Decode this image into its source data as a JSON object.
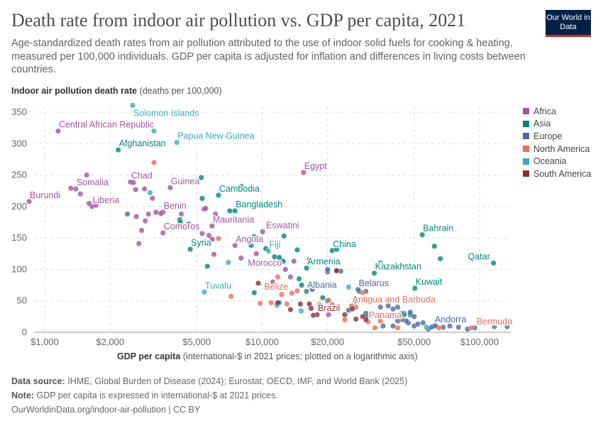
{
  "header": {
    "title": "Death rate from indoor air pollution vs. GDP per capita, 2021",
    "subtitle": "Age-standardized death rates from air pollution attributed to the use of indoor solid fuels for cooking & heating, measured per 100,000 individuals. GDP per capita is adjusted for inflation and differences in living costs between countries.",
    "logo": "Our World in Data"
  },
  "footer": {
    "source_label": "Data source:",
    "source": "IHME, Global Burden of Disease (2024); Eurostat, OECD, IMF, and World Bank (2025)",
    "note_label": "Note:",
    "note": "GDP per capita is expressed in international-$ at 2021 prices.",
    "url": "OurWorldinData.org/indoor-air-pollution | CC BY"
  },
  "chart_data": {
    "type": "scatter",
    "title": "Death rate from indoor air pollution vs. GDP per capita, 2021",
    "ylabel_bold": "Indoor air pollution death rate",
    "ylabel_rest": "(deaths per 100,000)",
    "xlabel_bold": "GDP per capita",
    "xlabel_rest": "(international-$ in 2021 prices; plotted on a logarithmic axis)",
    "x_scale": "log",
    "xlim": [
      900,
      140000
    ],
    "ylim": [
      0,
      350
    ],
    "x_ticks": [
      {
        "v": 1000,
        "l": "$1,000"
      },
      {
        "v": 2000,
        "l": "$2,000"
      },
      {
        "v": 5000,
        "l": "$5,000"
      },
      {
        "v": 10000,
        "l": "$10,000"
      },
      {
        "v": 20000,
        "l": "$20,000"
      },
      {
        "v": 50000,
        "l": "$50,000"
      },
      {
        "v": 100000,
        "l": "$100,000"
      }
    ],
    "y_ticks": [
      0,
      50,
      100,
      150,
      200,
      250,
      300,
      350
    ],
    "grid": true,
    "legend_position": "right",
    "series": [
      {
        "name": "Africa",
        "color": "#a2559c",
        "points": [
          {
            "x": 1153,
            "y": 320,
            "label": "Central African Republic"
          },
          {
            "x": 848,
            "y": 208,
            "label": "Burundi"
          },
          {
            "x": 1390,
            "y": 228,
            "label": "Somalia"
          },
          {
            "x": 1650,
            "y": 200,
            "label": "Liberia"
          },
          {
            "x": 2480,
            "y": 239,
            "label": "Chad"
          },
          {
            "x": 3780,
            "y": 230,
            "label": "Guinea"
          },
          {
            "x": 3500,
            "y": 191,
            "label": "Benin"
          },
          {
            "x": 5880,
            "y": 169,
            "label": "Mauritania"
          },
          {
            "x": 10050,
            "y": 160,
            "label": "Eswatini"
          },
          {
            "x": 3500,
            "y": 158,
            "label": "Comoros"
          },
          {
            "x": 7500,
            "y": 138,
            "label": "Angola"
          },
          {
            "x": 12800,
            "y": 100,
            "label": "Morocco",
            "anchor": "end"
          },
          {
            "x": 15500,
            "y": 254,
            "label": "Egypt"
          },
          {
            "x": 1320,
            "y": 229
          },
          {
            "x": 1460,
            "y": 220
          },
          {
            "x": 1560,
            "y": 250
          },
          {
            "x": 1600,
            "y": 205
          },
          {
            "x": 1720,
            "y": 202
          },
          {
            "x": 2560,
            "y": 238
          },
          {
            "x": 2620,
            "y": 227
          },
          {
            "x": 2880,
            "y": 228
          },
          {
            "x": 3130,
            "y": 213
          },
          {
            "x": 2640,
            "y": 184
          },
          {
            "x": 3000,
            "y": 188
          },
          {
            "x": 3250,
            "y": 191
          },
          {
            "x": 3420,
            "y": 189
          },
          {
            "x": 4250,
            "y": 188
          },
          {
            "x": 2900,
            "y": 177
          },
          {
            "x": 2790,
            "y": 162
          },
          {
            "x": 2710,
            "y": 141
          },
          {
            "x": 5400,
            "y": 196
          },
          {
            "x": 5500,
            "y": 197
          },
          {
            "x": 6100,
            "y": 188
          },
          {
            "x": 5300,
            "y": 157
          },
          {
            "x": 5700,
            "y": 154
          },
          {
            "x": 5900,
            "y": 148
          },
          {
            "x": 5400,
            "y": 144
          },
          {
            "x": 6000,
            "y": 124
          },
          {
            "x": 9400,
            "y": 125
          },
          {
            "x": 8000,
            "y": 118
          },
          {
            "x": 14000,
            "y": 113
          },
          {
            "x": 16500,
            "y": 116
          },
          {
            "x": 13500,
            "y": 88
          },
          {
            "x": 20200,
            "y": 28
          },
          {
            "x": 11200,
            "y": 80
          }
        ]
      },
      {
        "name": "Asia",
        "color": "#00847e",
        "points": [
          {
            "x": 2180,
            "y": 290,
            "label": "Afghanistan"
          },
          {
            "x": 6300,
            "y": 218,
            "label": "Cambodia"
          },
          {
            "x": 7500,
            "y": 193,
            "label": "Bangladesh"
          },
          {
            "x": 4670,
            "y": 132,
            "label": "Syria"
          },
          {
            "x": 21000,
            "y": 130,
            "label": "China"
          },
          {
            "x": 16000,
            "y": 102,
            "label": "Armenia"
          },
          {
            "x": 32800,
            "y": 94,
            "label": "Kazakhstan"
          },
          {
            "x": 54500,
            "y": 155,
            "label": "Bahrain"
          },
          {
            "x": 116000,
            "y": 110,
            "label": "Qatar",
            "anchor": "end"
          },
          {
            "x": 50400,
            "y": 70,
            "label": "Kuwait"
          },
          {
            "x": 5250,
            "y": 246
          },
          {
            "x": 5300,
            "y": 213
          },
          {
            "x": 8000,
            "y": 232
          },
          {
            "x": 7100,
            "y": 193
          },
          {
            "x": 4180,
            "y": 179
          },
          {
            "x": 4200,
            "y": 175
          },
          {
            "x": 5600,
            "y": 105
          },
          {
            "x": 9200,
            "y": 152
          },
          {
            "x": 12600,
            "y": 153
          },
          {
            "x": 8900,
            "y": 138
          },
          {
            "x": 10400,
            "y": 133
          },
          {
            "x": 11400,
            "y": 120
          },
          {
            "x": 12000,
            "y": 119
          },
          {
            "x": 12500,
            "y": 113
          },
          {
            "x": 14500,
            "y": 131
          },
          {
            "x": 22000,
            "y": 132
          },
          {
            "x": 9200,
            "y": 63
          },
          {
            "x": 14800,
            "y": 85
          },
          {
            "x": 20000,
            "y": 50
          },
          {
            "x": 19000,
            "y": 55
          },
          {
            "x": 12000,
            "y": 47
          },
          {
            "x": 15200,
            "y": 75
          },
          {
            "x": 35000,
            "y": 110
          },
          {
            "x": 62000,
            "y": 137
          },
          {
            "x": 66000,
            "y": 117
          },
          {
            "x": 28000,
            "y": 65
          },
          {
            "x": 30000,
            "y": 30
          },
          {
            "x": 45000,
            "y": 30
          },
          {
            "x": 48000,
            "y": 28
          },
          {
            "x": 27000,
            "y": 50
          }
        ]
      },
      {
        "name": "Europe",
        "color": "#4c6a9c",
        "points": [
          {
            "x": 16000,
            "y": 65,
            "label": "Albania"
          },
          {
            "x": 27600,
            "y": 68,
            "label": "Belarus"
          },
          {
            "x": 61800,
            "y": 10,
            "label": "Andorra"
          },
          {
            "x": 22000,
            "y": 98
          },
          {
            "x": 23000,
            "y": 97
          },
          {
            "x": 20000,
            "y": 96
          },
          {
            "x": 30000,
            "y": 65
          },
          {
            "x": 35000,
            "y": 40
          },
          {
            "x": 38000,
            "y": 42
          },
          {
            "x": 40000,
            "y": 37
          },
          {
            "x": 42000,
            "y": 40
          },
          {
            "x": 45000,
            "y": 28
          },
          {
            "x": 48000,
            "y": 32
          },
          {
            "x": 50000,
            "y": 10
          },
          {
            "x": 52000,
            "y": 13
          },
          {
            "x": 55000,
            "y": 15
          },
          {
            "x": 58000,
            "y": 5
          },
          {
            "x": 60000,
            "y": 8
          },
          {
            "x": 63000,
            "y": 10
          },
          {
            "x": 68000,
            "y": 8
          },
          {
            "x": 73000,
            "y": 10
          },
          {
            "x": 80000,
            "y": 8
          },
          {
            "x": 88000,
            "y": 5
          },
          {
            "x": 95000,
            "y": 7
          },
          {
            "x": 117000,
            "y": 9
          },
          {
            "x": 134000,
            "y": 9
          },
          {
            "x": 40000,
            "y": 10
          },
          {
            "x": 36000,
            "y": 10
          },
          {
            "x": 44000,
            "y": 20
          },
          {
            "x": 47000,
            "y": 15
          },
          {
            "x": 50000,
            "y": 25
          },
          {
            "x": 46000,
            "y": 18
          },
          {
            "x": 42000,
            "y": 18
          },
          {
            "x": 30000,
            "y": 25
          },
          {
            "x": 25000,
            "y": 35
          },
          {
            "x": 17000,
            "y": 68
          },
          {
            "x": 20000,
            "y": 100
          },
          {
            "x": 2400,
            "y": 188
          },
          {
            "x": 4600,
            "y": 172
          }
        ]
      },
      {
        "name": "North America",
        "color": "#e56e5a",
        "points": [
          {
            "x": 13700,
            "y": 62,
            "label": "Belize",
            "anchor": "end"
          },
          {
            "x": 25800,
            "y": 42,
            "label": "Antigua and Barbuda"
          },
          {
            "x": 30700,
            "y": 17,
            "label": "Panama"
          },
          {
            "x": 91800,
            "y": 7,
            "label": "Bermuda",
            "anchor": "end"
          },
          {
            "x": 3180,
            "y": 270
          },
          {
            "x": 6300,
            "y": 149
          },
          {
            "x": 7200,
            "y": 57
          },
          {
            "x": 9800,
            "y": 46
          },
          {
            "x": 11000,
            "y": 47
          },
          {
            "x": 12300,
            "y": 60
          },
          {
            "x": 13000,
            "y": 45
          },
          {
            "x": 14500,
            "y": 66
          },
          {
            "x": 18300,
            "y": 44
          },
          {
            "x": 20200,
            "y": 51
          },
          {
            "x": 21000,
            "y": 44
          },
          {
            "x": 24000,
            "y": 20
          },
          {
            "x": 27000,
            "y": 40
          },
          {
            "x": 29000,
            "y": 63
          },
          {
            "x": 33000,
            "y": 7
          },
          {
            "x": 35000,
            "y": 18
          },
          {
            "x": 42000,
            "y": 7
          },
          {
            "x": 65000,
            "y": 7
          },
          {
            "x": 11800,
            "y": 88
          }
        ]
      },
      {
        "name": "Oceania",
        "color": "#38aaba",
        "points": [
          {
            "x": 2540,
            "y": 361,
            "label": "Solomon Islands",
            "below": true
          },
          {
            "x": 4050,
            "y": 302,
            "label": "Papua New Guinea"
          },
          {
            "x": 10700,
            "y": 129,
            "label": "Fiji"
          },
          {
            "x": 5420,
            "y": 64,
            "label": "Tuvalu"
          },
          {
            "x": 3180,
            "y": 320
          },
          {
            "x": 3050,
            "y": 222
          },
          {
            "x": 4180,
            "y": 170
          },
          {
            "x": 7000,
            "y": 111
          },
          {
            "x": 11700,
            "y": 43
          },
          {
            "x": 15100,
            "y": 34
          },
          {
            "x": 25000,
            "y": 72
          },
          {
            "x": 57000,
            "y": 8
          },
          {
            "x": 44000,
            "y": 30
          }
        ]
      },
      {
        "name": "South America",
        "color": "#883039",
        "points": [
          {
            "x": 17900,
            "y": 28,
            "label": "Brazil"
          },
          {
            "x": 9600,
            "y": 78
          },
          {
            "x": 11800,
            "y": 47
          },
          {
            "x": 13500,
            "y": 36
          },
          {
            "x": 16500,
            "y": 45
          },
          {
            "x": 16800,
            "y": 38
          },
          {
            "x": 17200,
            "y": 27
          },
          {
            "x": 22000,
            "y": 98
          },
          {
            "x": 24000,
            "y": 28
          },
          {
            "x": 27000,
            "y": 21
          },
          {
            "x": 29000,
            "y": 25
          },
          {
            "x": 30000,
            "y": 20
          },
          {
            "x": 26000,
            "y": 37
          },
          {
            "x": 15000,
            "y": 45
          }
        ]
      }
    ]
  }
}
